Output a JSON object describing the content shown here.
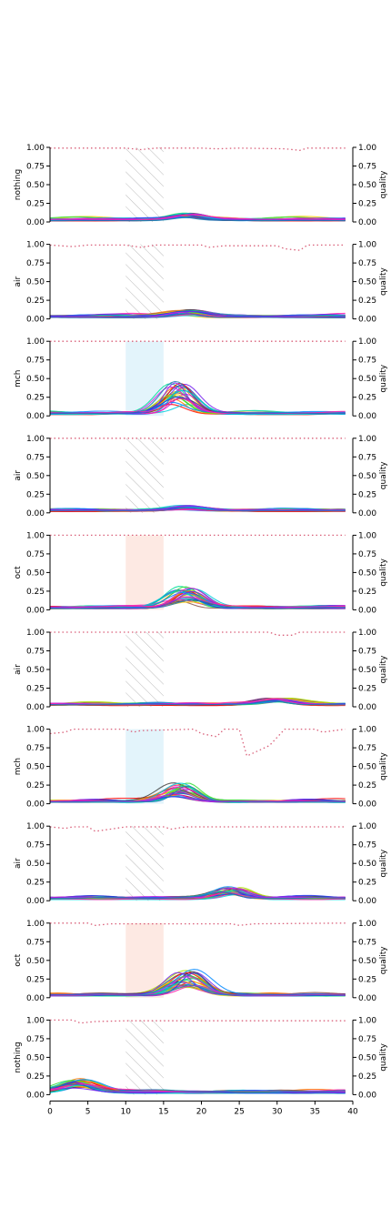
{
  "chart_data": {
    "type": "line",
    "x_range": [
      0,
      40
    ],
    "x_ticks": [
      0,
      5,
      10,
      15,
      20,
      25,
      30,
      35,
      40
    ],
    "y_range": [
      0,
      1
    ],
    "y_ticks": [
      "0.00",
      "0.25",
      "0.50",
      "0.75",
      "1.00"
    ],
    "right_axis_label": "quality",
    "grid": false,
    "stimulus_window": [
      10,
      15
    ],
    "window_colors": {
      "hatched": "#bbbbbb",
      "mch": "#e3f4fb",
      "oct": "#fde9e3"
    },
    "quality_line_color": "#d9607a",
    "panels": [
      {
        "ylabel": "nothing",
        "window": "hatched",
        "quality": [
          [
            0,
            0.99
          ],
          [
            10,
            0.99
          ],
          [
            12,
            0.97
          ],
          [
            14,
            0.99
          ],
          [
            20,
            0.99
          ],
          [
            22,
            0.98
          ],
          [
            25,
            0.99
          ],
          [
            31,
            0.98
          ],
          [
            33,
            0.96
          ],
          [
            34,
            0.99
          ],
          [
            39,
            0.99
          ]
        ],
        "traces": [
          {
            "peak": 0.08,
            "spread": 3,
            "center": 18
          }
        ]
      },
      {
        "ylabel": "air",
        "window": "hatched",
        "quality": [
          [
            0,
            0.99
          ],
          [
            3,
            0.97
          ],
          [
            5,
            0.99
          ],
          [
            10,
            0.99
          ],
          [
            12,
            0.96
          ],
          [
            14,
            0.99
          ],
          [
            20,
            0.99
          ],
          [
            21,
            0.96
          ],
          [
            23,
            0.98
          ],
          [
            30,
            0.98
          ],
          [
            31,
            0.94
          ],
          [
            33,
            0.92
          ],
          [
            34,
            0.99
          ],
          [
            39,
            0.99
          ]
        ],
        "traces": [
          {
            "peak": 0.08,
            "spread": 3,
            "center": 18
          }
        ]
      },
      {
        "ylabel": "mch",
        "window": "mch",
        "quality": [
          [
            0,
            1.0
          ],
          [
            39,
            1.0
          ]
        ],
        "traces": [
          {
            "peak": 0.42,
            "spread": 2.6,
            "center": 17
          }
        ]
      },
      {
        "ylabel": "air",
        "window": "hatched",
        "quality": [
          [
            0,
            1.0
          ],
          [
            39,
            1.0
          ]
        ],
        "traces": [
          {
            "peak": 0.05,
            "spread": 3,
            "center": 18
          }
        ]
      },
      {
        "ylabel": "oct",
        "window": "oct",
        "quality": [
          [
            0,
            1.0
          ],
          [
            39,
            1.0
          ]
        ],
        "traces": [
          {
            "peak": 0.29,
            "spread": 2.8,
            "center": 18
          }
        ]
      },
      {
        "ylabel": "air",
        "window": "hatched",
        "quality": [
          [
            0,
            1.0
          ],
          [
            29,
            1.0
          ],
          [
            30,
            0.96
          ],
          [
            32,
            0.96
          ],
          [
            33,
            1.0
          ],
          [
            39,
            1.0
          ]
        ],
        "traces": [
          {
            "peak": 0.08,
            "spread": 3,
            "center": 30
          }
        ]
      },
      {
        "ylabel": "mch",
        "window": "mch",
        "quality": [
          [
            0,
            0.94
          ],
          [
            2,
            0.96
          ],
          [
            3,
            1.0
          ],
          [
            10,
            1.0
          ],
          [
            11,
            0.96
          ],
          [
            12,
            0.98
          ],
          [
            19,
            1.0
          ],
          [
            20,
            0.94
          ],
          [
            22,
            0.9
          ],
          [
            23,
            1.0
          ],
          [
            25,
            1.0
          ],
          [
            26,
            0.64
          ],
          [
            29,
            0.78
          ],
          [
            31,
            1.0
          ],
          [
            35,
            1.0
          ],
          [
            36,
            0.96
          ],
          [
            39,
            1.0
          ]
        ],
        "traces": [
          {
            "peak": 0.24,
            "spread": 2.7,
            "center": 17
          }
        ]
      },
      {
        "ylabel": "air",
        "window": "hatched",
        "quality": [
          [
            0,
            0.99
          ],
          [
            2,
            0.97
          ],
          [
            3,
            0.99
          ],
          [
            5,
            0.99
          ],
          [
            6,
            0.93
          ],
          [
            8,
            0.96
          ],
          [
            10,
            0.99
          ],
          [
            15,
            0.99
          ],
          [
            16,
            0.96
          ],
          [
            18,
            0.99
          ],
          [
            39,
            0.99
          ]
        ],
        "traces": [
          {
            "peak": 0.14,
            "spread": 2.5,
            "center": 24
          }
        ]
      },
      {
        "ylabel": "oct",
        "window": "oct",
        "quality": [
          [
            0,
            1.0
          ],
          [
            5,
            1.0
          ],
          [
            6,
            0.97
          ],
          [
            8,
            0.99
          ],
          [
            24,
            0.99
          ],
          [
            25,
            0.97
          ],
          [
            27,
            0.99
          ],
          [
            39,
            1.0
          ]
        ],
        "traces": [
          {
            "peak": 0.33,
            "spread": 3,
            "center": 18
          }
        ]
      },
      {
        "ylabel": "nothing",
        "window": "hatched",
        "quality": [
          [
            0,
            1.0
          ],
          [
            3,
            1.0
          ],
          [
            4,
            0.96
          ],
          [
            6,
            0.98
          ],
          [
            10,
            0.99
          ],
          [
            39,
            0.99
          ]
        ],
        "traces": [
          {
            "peak": 0.17,
            "spread": 3,
            "center": 4
          }
        ]
      }
    ],
    "trace_palette": [
      "#ff0000",
      "#ff7700",
      "#ffcc00",
      "#aadd00",
      "#33dd33",
      "#00dd99",
      "#00ccdd",
      "#0088ff",
      "#2233ee",
      "#7722ee",
      "#cc22dd",
      "#ff22aa",
      "#1f77b4",
      "#8c564b",
      "#444444"
    ]
  }
}
